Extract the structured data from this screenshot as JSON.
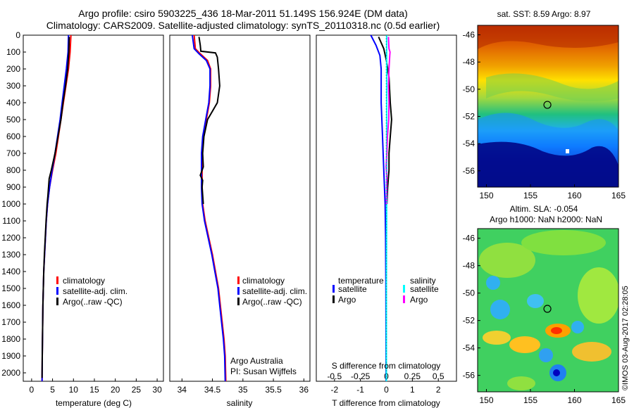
{
  "header": {
    "title_line1": "Argo profile: csiro 5903225_436 18-Mar-2011 51.149S 156.924E (DM data)",
    "title_line2": "Climatology: CARS2009. Satellite-adjusted climatology: synTS_20110318.nc (0.5d earlier)"
  },
  "credit": {
    "text": "©IMOS 03-Aug-2017 02:28:05"
  },
  "colors": {
    "climatology": "#ff0000",
    "satellite": "#0000ff",
    "argo": "#000000",
    "satellite_salinity": "#00ffff",
    "argo_salinity": "#ff00ff",
    "zero_line": "#00bfbf"
  },
  "chart_data": [
    {
      "id": "temperature-profile",
      "type": "line",
      "xlabel": "temperature (deg C)",
      "ylabel": "",
      "xlim": [
        -2,
        31.5
      ],
      "ylim": [
        2050,
        0
      ],
      "xticks": [
        0,
        5,
        10,
        15,
        20,
        25,
        30
      ],
      "yticks": [
        0,
        100,
        200,
        300,
        400,
        500,
        600,
        700,
        800,
        900,
        1000,
        1100,
        1200,
        1300,
        1400,
        1500,
        1600,
        1700,
        1800,
        1900,
        2000
      ],
      "legend": {
        "position": "bottom-right",
        "entries": [
          "climatology",
          "satellite-adj. clim.",
          "Argo(..raw -QC)"
        ]
      },
      "series": [
        {
          "name": "climatology",
          "color": "#ff0000",
          "points": [
            [
              9.4,
              0
            ],
            [
              9.2,
              100
            ],
            [
              8.8,
              200
            ],
            [
              8.2,
              300
            ],
            [
              7.6,
              400
            ],
            [
              7.0,
              500
            ],
            [
              6.4,
              600
            ],
            [
              5.8,
              700
            ],
            [
              5.0,
              800
            ],
            [
              4.3,
              900
            ],
            [
              3.8,
              1000
            ],
            [
              3.5,
              1100
            ],
            [
              3.3,
              1200
            ],
            [
              3.1,
              1300
            ],
            [
              2.9,
              1400
            ],
            [
              2.8,
              1500
            ],
            [
              2.7,
              1600
            ],
            [
              2.65,
              1700
            ],
            [
              2.6,
              1800
            ],
            [
              2.55,
              1900
            ],
            [
              2.5,
              2050
            ]
          ]
        },
        {
          "name": "satellite-adj. clim.",
          "color": "#0000ff",
          "points": [
            [
              8.8,
              0
            ],
            [
              8.7,
              100
            ],
            [
              8.3,
              200
            ],
            [
              7.8,
              300
            ],
            [
              7.3,
              400
            ],
            [
              6.8,
              500
            ],
            [
              6.2,
              600
            ],
            [
              5.6,
              700
            ],
            [
              4.9,
              800
            ],
            [
              4.3,
              900
            ],
            [
              3.8,
              1000
            ],
            [
              3.5,
              1100
            ],
            [
              3.3,
              1200
            ],
            [
              3.1,
              1300
            ],
            [
              2.9,
              1400
            ],
            [
              2.8,
              1500
            ],
            [
              2.7,
              1600
            ],
            [
              2.65,
              1700
            ],
            [
              2.6,
              1800
            ],
            [
              2.55,
              1900
            ],
            [
              2.5,
              2050
            ]
          ]
        },
        {
          "name": "Argo(..raw -QC)",
          "color": "#000000",
          "points": [
            [
              9.0,
              10
            ],
            [
              8.9,
              100
            ],
            [
              8.6,
              200
            ],
            [
              8.1,
              300
            ],
            [
              7.5,
              400
            ],
            [
              7.0,
              500
            ],
            [
              6.3,
              600
            ],
            [
              5.6,
              700
            ],
            [
              4.7,
              800
            ],
            [
              4.2,
              850
            ],
            [
              3.9,
              950
            ],
            [
              3.7,
              1000
            ],
            [
              3.45,
              1100
            ],
            [
              3.25,
              1200
            ],
            [
              3.05,
              1300
            ],
            [
              2.9,
              1400
            ],
            [
              2.8,
              1500
            ],
            [
              2.7,
              1600
            ],
            [
              2.65,
              1700
            ],
            [
              2.6,
              1800
            ],
            [
              2.55,
              1900
            ],
            [
              2.5,
              2030
            ]
          ]
        }
      ]
    },
    {
      "id": "salinity-profile",
      "type": "line",
      "xlabel": "salinity",
      "xlim": [
        33.8,
        36.1
      ],
      "ylim": [
        2050,
        0
      ],
      "xticks": [
        34,
        34.5,
        35,
        35.5,
        36
      ],
      "legend": {
        "position": "bottom-right",
        "entries": [
          "climatology",
          "satellite-adj. clim.",
          "Argo(..raw -QC)"
        ]
      },
      "annotation": [
        "Argo Australia",
        "PI: Susan Wijffels"
      ],
      "series": [
        {
          "name": "climatology",
          "color": "#ff0000",
          "points": [
            [
              34.2,
              0
            ],
            [
              34.22,
              80
            ],
            [
              34.3,
              110
            ],
            [
              34.42,
              150
            ],
            [
              34.47,
              200
            ],
            [
              34.47,
              300
            ],
            [
              34.45,
              400
            ],
            [
              34.4,
              500
            ],
            [
              34.35,
              600
            ],
            [
              34.33,
              700
            ],
            [
              34.33,
              800
            ],
            [
              34.33,
              900
            ],
            [
              34.34,
              1000
            ],
            [
              34.38,
              1100
            ],
            [
              34.44,
              1200
            ],
            [
              34.5,
              1300
            ],
            [
              34.55,
              1400
            ],
            [
              34.6,
              1500
            ],
            [
              34.63,
              1600
            ],
            [
              34.66,
              1700
            ],
            [
              34.69,
              1800
            ],
            [
              34.71,
              1900
            ],
            [
              34.72,
              2050
            ]
          ]
        },
        {
          "name": "satellite-adj. clim.",
          "color": "#0000ff",
          "points": [
            [
              34.17,
              0
            ],
            [
              34.2,
              80
            ],
            [
              34.28,
              110
            ],
            [
              34.4,
              150
            ],
            [
              34.46,
              200
            ],
            [
              34.46,
              300
            ],
            [
              34.44,
              400
            ],
            [
              34.39,
              500
            ],
            [
              34.34,
              600
            ],
            [
              34.32,
              700
            ],
            [
              34.32,
              800
            ],
            [
              34.32,
              900
            ],
            [
              34.33,
              1000
            ],
            [
              34.37,
              1100
            ],
            [
              34.43,
              1200
            ],
            [
              34.49,
              1300
            ],
            [
              34.54,
              1400
            ],
            [
              34.59,
              1500
            ],
            [
              34.62,
              1600
            ],
            [
              34.65,
              1700
            ],
            [
              34.68,
              1800
            ],
            [
              34.7,
              1900
            ],
            [
              34.71,
              2050
            ]
          ]
        },
        {
          "name": "Argo(..raw -QC)",
          "color": "#000000",
          "points": [
            [
              34.28,
              10
            ],
            [
              34.3,
              60
            ],
            [
              34.31,
              95
            ],
            [
              34.55,
              105
            ],
            [
              34.58,
              130
            ],
            [
              34.6,
              200
            ],
            [
              34.62,
              300
            ],
            [
              34.58,
              400
            ],
            [
              34.5,
              450
            ],
            [
              34.42,
              500
            ],
            [
              34.36,
              600
            ],
            [
              34.34,
              700
            ],
            [
              34.35,
              780
            ],
            [
              34.3,
              830
            ],
            [
              34.34,
              860
            ],
            [
              34.33,
              900
            ],
            [
              34.35,
              1000
            ]
          ]
        }
      ]
    },
    {
      "id": "difference-profile",
      "type": "line",
      "xlabel": "T difference from climatology",
      "x2label": "S difference from climatology",
      "xlim": [
        -2.7,
        2.7
      ],
      "x2lim": [
        -0.675,
        0.675
      ],
      "ylim": [
        2050,
        0
      ],
      "xticks": [
        -2,
        -1,
        0,
        1,
        2
      ],
      "x2ticks": [
        -0.5,
        -0.25,
        0,
        0.25,
        0.5
      ],
      "legend_groups": [
        {
          "title": "temperature",
          "entries": [
            {
              "label": "satellite",
              "color": "#0000ff"
            },
            {
              "label": "Argo",
              "color": "#000000"
            }
          ]
        },
        {
          "title": "salinity",
          "entries": [
            {
              "label": "satellite",
              "color": "#00ffff"
            },
            {
              "label": "Argo",
              "color": "#ff00ff"
            }
          ]
        }
      ],
      "series": [
        {
          "name": "temperature satellite",
          "color": "#0000ff",
          "points": [
            [
              -0.6,
              0
            ],
            [
              -0.4,
              60
            ],
            [
              -0.25,
              120
            ],
            [
              -0.2,
              200
            ],
            [
              -0.2,
              400
            ],
            [
              -0.15,
              600
            ],
            [
              -0.1,
              800
            ],
            [
              -0.05,
              1000
            ],
            [
              -0.03,
              1200
            ],
            [
              -0.02,
              1500
            ],
            [
              -0.01,
              2050
            ]
          ]
        },
        {
          "name": "temperature Argo",
          "color": "#000000",
          "points": [
            [
              -0.3,
              10
            ],
            [
              -0.1,
              80
            ],
            [
              0.0,
              150
            ],
            [
              0.1,
              250
            ],
            [
              0.15,
              400
            ],
            [
              0.2,
              500
            ],
            [
              0.15,
              600
            ],
            [
              0.1,
              700
            ],
            [
              0.1,
              800
            ],
            [
              0.05,
              900
            ],
            [
              0.02,
              1000
            ]
          ]
        },
        {
          "name": "salinity satellite",
          "color": "#00ffff",
          "points": [
            [
              0.01,
              0
            ],
            [
              0.01,
              100
            ],
            [
              0.01,
              300
            ],
            [
              0.01,
              600
            ],
            [
              0.01,
              1000
            ],
            [
              0.0,
              1500
            ],
            [
              0.0,
              2050
            ]
          ]
        },
        {
          "name": "salinity Argo",
          "color": "#ff00ff",
          "points": [
            [
              0.08,
              10
            ],
            [
              0.1,
              80
            ],
            [
              0.14,
              100
            ],
            [
              0.13,
              120
            ],
            [
              0.1,
              200
            ],
            [
              0.08,
              300
            ],
            [
              0.1,
              400
            ],
            [
              0.09,
              500
            ],
            [
              0.04,
              600
            ],
            [
              0.02,
              700
            ],
            [
              -0.01,
              780
            ],
            [
              0.02,
              850
            ],
            [
              0.01,
              900
            ],
            [
              0.0,
              1000
            ]
          ]
        }
      ]
    },
    {
      "id": "sst-map",
      "type": "heatmap",
      "title": "sat. SST: 8.59 Argo: 8.97",
      "xlim": [
        149,
        165
      ],
      "ylim": [
        -57.2,
        -45.3
      ],
      "xticks": [
        150,
        155,
        160,
        165
      ],
      "yticks": [
        -46,
        -48,
        -50,
        -52,
        -54,
        -56
      ],
      "marker": {
        "lon": 156.924,
        "lat": -51.149
      }
    },
    {
      "id": "sla-map",
      "type": "heatmap",
      "title": [
        "Altim. SLA: -0.054",
        "Argo h1000: NaN h2000: NaN"
      ],
      "xlim": [
        149,
        165
      ],
      "ylim": [
        -57.2,
        -45.3
      ],
      "xticks": [
        150,
        155,
        160,
        165
      ],
      "yticks": [
        -46,
        -48,
        -50,
        -52,
        -54,
        -56
      ],
      "marker": {
        "lon": 156.924,
        "lat": -51.149
      }
    }
  ]
}
